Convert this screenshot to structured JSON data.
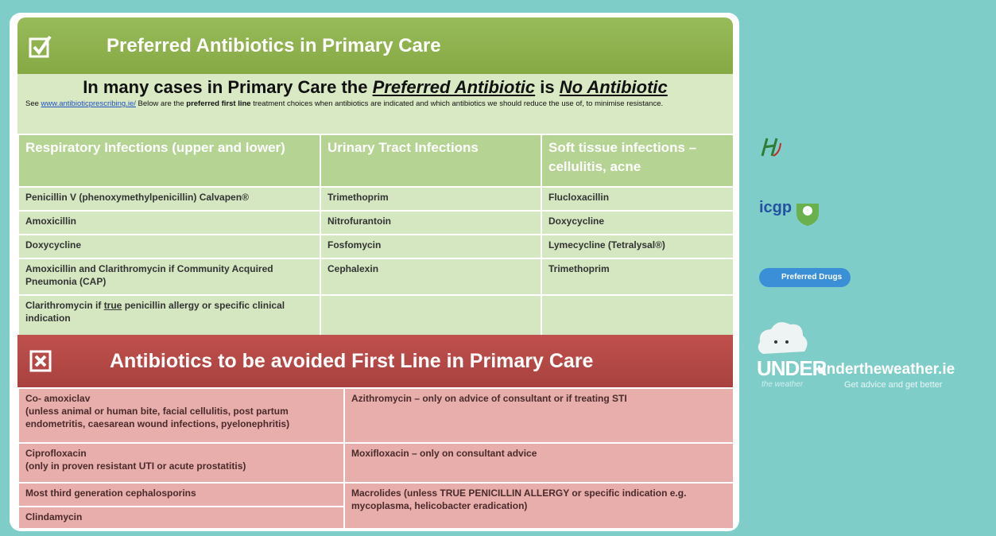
{
  "preferred": {
    "title": "Preferred Antibiotics in Primary Care",
    "headline": [
      "In many cases in Primary Care the ",
      "Preferred Antibiotic",
      " is ",
      "No Antibiotic"
    ],
    "intro": [
      "See ",
      "www.antibioticprescribing.ie/",
      " Below are the ",
      "preferred first line",
      " treatment choices when antibiotics are indicated and which antibiotics we should reduce the use of, to minimise resistance."
    ],
    "columns": [
      {
        "header": "Respiratory Infections (upper and lower)",
        "items": [
          "Penicillin V (phenoxymethylpenicillin) Calvapen®",
          "Amoxicillin",
          "Doxycycline",
          "Amoxicillin and Clarithromycin if Community Acquired Pneumonia (CAP)",
          [
            "Clarithromycin if ",
            "true",
            " penicillin allergy or specific clinical indication"
          ]
        ]
      },
      {
        "header": "Urinary Tract Infections",
        "items": [
          "Trimethoprim",
          "Nitrofurantoin",
          "Fosfomycin",
          "Cephalexin"
        ]
      },
      {
        "header": "Soft tissue infections – cellulitis, acne",
        "items": [
          "Flucloxacillin",
          "Doxycycline",
          "Lymecycline (Tetralysal®)",
          "Trimethoprim"
        ]
      }
    ]
  },
  "avoid": {
    "title": "Antibiotics to be avoided First Line in Primary Care",
    "left": [
      {
        "name": "Co- amoxiclav",
        "note": "(unless animal or human bite, facial cellulitis, post partum endometritis, caesarean wound infections, pyelonephritis)"
      },
      {
        "name": "Ciprofloxacin",
        "note": "(only in proven resistant UTI or acute prostatitis)"
      },
      {
        "name": "Most third generation cephalosporins"
      },
      {
        "name": "Clindamycin"
      }
    ],
    "right": [
      "Azithromycin – only on advice of consultant or if treating STI",
      "Moxifloxacin – only on consultant advice",
      "Macrolides (unless TRUE PENICILLIN ALLERGY or specific indication e.g. mycoplasma, helicobacter eradication)"
    ]
  },
  "sidebar": {
    "icgp": "icgp",
    "preferred_drugs": "Preferred Drugs",
    "under": "UNDER",
    "the_weather": "the weather",
    "site": "undertheweather.ie",
    "tagline": "Get advice and get better"
  }
}
